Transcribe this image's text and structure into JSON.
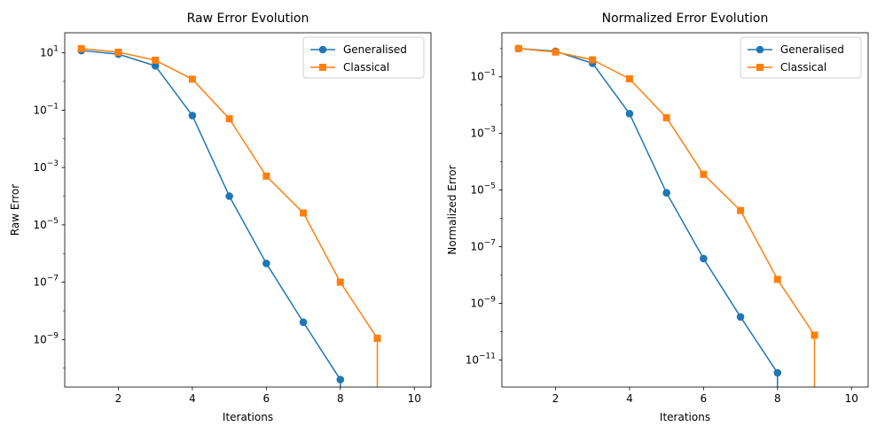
{
  "chart_data": [
    {
      "type": "line",
      "title": "Raw Error Evolution",
      "xlabel": "Iterations",
      "ylabel": "Raw Error",
      "yscale": "log",
      "xlim": [
        0.55,
        10.45
      ],
      "ylim": [
        2.2e-11,
        50
      ],
      "xticks": [
        2,
        4,
        6,
        8,
        10
      ],
      "xtick_labels": [
        "2",
        "4",
        "6",
        "8",
        "10"
      ],
      "yticks": [
        {
          "value": 10,
          "base": "10",
          "exp": "1"
        },
        {
          "value": 0.1,
          "base": "10",
          "exp": "−1"
        },
        {
          "value": 0.001,
          "base": "10",
          "exp": "−3"
        },
        {
          "value": 1e-05,
          "base": "10",
          "exp": "−5"
        },
        {
          "value": 1e-07,
          "base": "10",
          "exp": "−7"
        },
        {
          "value": 1e-09,
          "base": "10",
          "exp": "−9"
        }
      ],
      "grid": false,
      "legend_position": "top-right",
      "series": [
        {
          "name": "Generalised",
          "color": "#1f77b4",
          "marker": "circle",
          "x": [
            1,
            2,
            3,
            4,
            5,
            6,
            7,
            8
          ],
          "y": [
            12.0,
            9.0,
            3.5,
            0.065,
            0.0001,
            4.5e-07,
            4e-09,
            4e-11
          ],
          "drop_to_zero_at": 8
        },
        {
          "name": "Classical",
          "color": "#ff7f0e",
          "marker": "square",
          "x": [
            1,
            2,
            3,
            4,
            5,
            6,
            7,
            8,
            9
          ],
          "y": [
            14.0,
            10.5,
            5.5,
            1.2,
            0.05,
            0.0005,
            2.6e-05,
            1e-07,
            1.1e-09
          ],
          "drop_to_zero_at": 9
        }
      ]
    },
    {
      "type": "line",
      "title": "Normalized Error Evolution",
      "xlabel": "Iterations",
      "ylabel": "Normalized Error",
      "yscale": "log",
      "xlim": [
        0.55,
        10.45
      ],
      "ylim": [
        1.1e-12,
        3.6
      ],
      "xticks": [
        2,
        4,
        6,
        8,
        10
      ],
      "xtick_labels": [
        "2",
        "4",
        "6",
        "8",
        "10"
      ],
      "yticks": [
        {
          "value": 0.1,
          "base": "10",
          "exp": "−1"
        },
        {
          "value": 0.001,
          "base": "10",
          "exp": "−3"
        },
        {
          "value": 1e-05,
          "base": "10",
          "exp": "−5"
        },
        {
          "value": 1e-07,
          "base": "10",
          "exp": "−7"
        },
        {
          "value": 1e-09,
          "base": "10",
          "exp": "−9"
        },
        {
          "value": 1e-11,
          "base": "10",
          "exp": "−11"
        }
      ],
      "grid": false,
      "legend_position": "top-right",
      "series": [
        {
          "name": "Generalised",
          "color": "#1f77b4",
          "marker": "circle",
          "x": [
            1,
            2,
            3,
            4,
            5,
            6,
            7,
            8
          ],
          "y": [
            1.0,
            0.8,
            0.3,
            0.005,
            8e-06,
            3.8e-08,
            3.3e-10,
            3.5e-12
          ],
          "drop_to_zero_at": 8
        },
        {
          "name": "Classical",
          "color": "#ff7f0e",
          "marker": "square",
          "x": [
            1,
            2,
            3,
            4,
            5,
            6,
            7,
            8,
            9
          ],
          "y": [
            1.0,
            0.75,
            0.4,
            0.085,
            0.0036,
            3.6e-05,
            1.9e-06,
            7e-09,
            7.5e-11
          ],
          "drop_to_zero_at": 9
        }
      ]
    }
  ]
}
